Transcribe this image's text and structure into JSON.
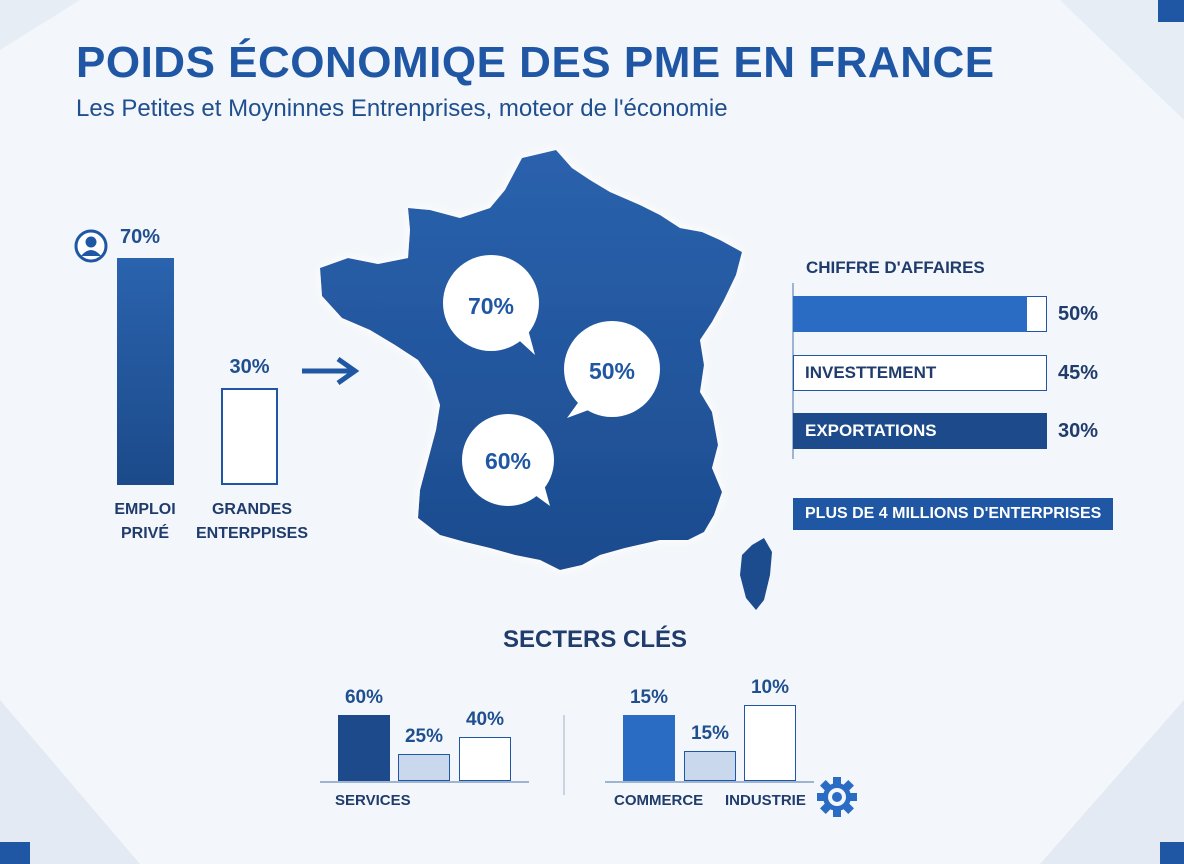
{
  "header": {
    "title": "POIDS ÉCONOMIQE DES PME EN FRANCE",
    "subtitle": "Les Petites et Moyninnes Entrenprises, moteor de l'économie"
  },
  "map": {
    "bubbles": [
      "70%",
      "50%",
      "60%"
    ]
  },
  "sectors_title": "SECTERS CLÉS",
  "banner": "PLUS DE 4 MILLIONS D'ENTERPRISES",
  "icons": [
    "user-icon",
    "arrow-right-icon",
    "gear-icon"
  ],
  "colors": {
    "primary": "#1f57a4",
    "dark": "#1c4a8a",
    "light": "#c9d8ec",
    "background": "#f3f6fa"
  },
  "chart_data": [
    {
      "type": "bar",
      "categories": [
        "EMPLOI PRIVÉ",
        "GRANDES ENTERPPISES"
      ],
      "values": [
        70,
        30
      ],
      "value_labels": [
        "70%",
        "30%"
      ],
      "ylim": [
        0,
        70
      ]
    },
    {
      "type": "bar",
      "orientation": "horizontal",
      "title": "CHIFFRE D'AFFAIRES",
      "categories": [
        "",
        "INVESTTEMENT",
        "EXPORTATIONS"
      ],
      "values": [
        50,
        45,
        30
      ],
      "value_labels": [
        "50%",
        "45%",
        "30%"
      ],
      "fill": [
        0.92,
        0.0,
        1.0
      ]
    },
    {
      "type": "bar",
      "title": "SECTERS CLÉS",
      "categories": [
        "SERVICES",
        "",
        ""
      ],
      "values": [
        60,
        25,
        40
      ],
      "value_labels": [
        "60%",
        "25%",
        "40%"
      ],
      "ylim": [
        0,
        60
      ]
    },
    {
      "type": "bar",
      "categories": [
        "COMMERCE",
        "",
        "INDUSTRIE"
      ],
      "values": [
        15,
        15,
        10
      ],
      "value_labels": [
        "15%",
        "15%",
        "10%"
      ]
    }
  ]
}
